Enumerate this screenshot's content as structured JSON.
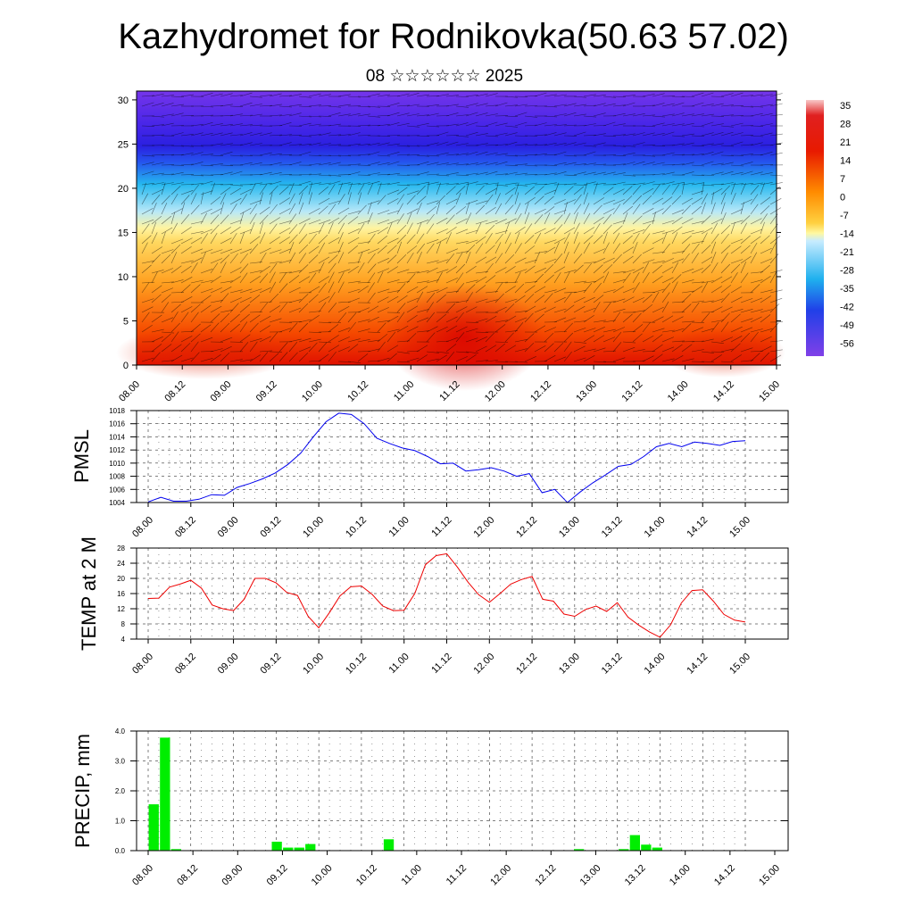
{
  "title": "Kazhydromet for Rodnikovka(50.63 57.02)",
  "subtitle": "08 ☆☆☆☆☆☆ 2025",
  "time_labels": [
    "08.00",
    "08.12",
    "09.00",
    "09.12",
    "10.00",
    "10.12",
    "11.00",
    "11.12",
    "12.00",
    "12.12",
    "13.00",
    "13.12",
    "14.00",
    "14.12",
    "15.00"
  ],
  "chart_data": [
    {
      "type": "heatmap",
      "title": "",
      "xlabel": "",
      "ylabel": "",
      "x": [
        "08.00",
        "08.12",
        "09.00",
        "09.12",
        "10.00",
        "10.12",
        "11.00",
        "11.12",
        "12.00",
        "12.12",
        "13.00",
        "13.12",
        "14.00",
        "14.12",
        "15.00"
      ],
      "y_ticks": [
        0,
        5,
        10,
        15,
        20,
        25,
        30
      ],
      "ylim": [
        0,
        31
      ],
      "colorbar_labels": [
        "35",
        "28",
        "21",
        "14",
        "7",
        "0",
        "-7",
        "-14",
        "-21",
        "-28",
        "-35",
        "-42",
        "-49",
        "-56"
      ],
      "colorbar_values": [
        35,
        28,
        21,
        14,
        7,
        0,
        -7,
        -14,
        -21,
        -28,
        -35,
        -42,
        -49,
        -56
      ],
      "wind_barbs": true,
      "colors": {
        "hot": "#e00000",
        "warm": "#ff9a00",
        "neutral": "#fff4a0",
        "cold": "#25b8ef",
        "coldest": "#6a20e6"
      }
    },
    {
      "type": "line",
      "ylabel": "PMSL",
      "ylim": [
        1004,
        1018
      ],
      "y_ticks": [
        "1004",
        "1006",
        "1008",
        "1010",
        "1012",
        "1014",
        "1016",
        "1018"
      ],
      "line_color": "#0000ee",
      "values": [
        1004.1,
        1004.8,
        1004.2,
        1004.2,
        1004.5,
        1005.2,
        1005.1,
        1006.3,
        1006.9,
        1007.6,
        1008.5,
        1009.8,
        1011.5,
        1014.0,
        1016.3,
        1017.6,
        1017.4,
        1016.0,
        1013.8,
        1013.0,
        1012.3,
        1011.9,
        1011.0,
        1009.9,
        1010.0,
        1008.8,
        1009.0,
        1009.3,
        1008.8,
        1008.0,
        1008.4,
        1005.5,
        1006.0,
        1004.0,
        1005.6,
        1007.0,
        1008.2,
        1009.5,
        1009.8,
        1011.0,
        1012.5,
        1013.0,
        1012.5,
        1013.2,
        1013.0,
        1012.7,
        1013.3,
        1013.4
      ]
    },
    {
      "type": "line",
      "ylabel": "TEMP at 2 M",
      "ylim": [
        4,
        28
      ],
      "y_ticks": [
        "4",
        "8",
        "12",
        "16",
        "20",
        "24",
        "28"
      ],
      "line_color": "#ee0000",
      "values": [
        14.7,
        14.8,
        17.7,
        18.5,
        19.5,
        17.4,
        13.0,
        12.0,
        11.5,
        14.5,
        20.0,
        20.0,
        18.8,
        16.3,
        15.5,
        10.0,
        7.0,
        11.0,
        15.4,
        17.8,
        18.0,
        15.8,
        12.7,
        11.5,
        11.6,
        16.0,
        23.6,
        26.0,
        26.5,
        23.0,
        19.0,
        15.7,
        13.7,
        16.0,
        18.5,
        19.7,
        20.5,
        14.5,
        14.0,
        10.6,
        10.0,
        11.8,
        12.7,
        11.3,
        13.6,
        9.8,
        7.7,
        5.9,
        4.5,
        7.8,
        13.5,
        16.8,
        17.0,
        14.0,
        10.5,
        9.0,
        8.5
      ]
    },
    {
      "type": "bar",
      "ylabel": "PRECIP, mm",
      "ylim": [
        0,
        4.0
      ],
      "y_ticks": [
        "0.0",
        "1.0",
        "2.0",
        "3.0",
        "4.0"
      ],
      "bar_color": "#00ee00",
      "bars": [
        {
          "t": 0.5,
          "v": 1.55
        },
        {
          "t": 1.5,
          "v": 3.78
        },
        {
          "t": 2.5,
          "v": 0.05
        },
        {
          "t": 11.5,
          "v": 0.3
        },
        {
          "t": 12.5,
          "v": 0.1
        },
        {
          "t": 13.5,
          "v": 0.1
        },
        {
          "t": 14.5,
          "v": 0.22
        },
        {
          "t": 21.5,
          "v": 0.38
        },
        {
          "t": 38.5,
          "v": 0.05
        },
        {
          "t": 42.5,
          "v": 0.05
        },
        {
          "t": 43.5,
          "v": 0.52
        },
        {
          "t": 44.5,
          "v": 0.2
        },
        {
          "t": 45.5,
          "v": 0.1
        }
      ]
    }
  ]
}
